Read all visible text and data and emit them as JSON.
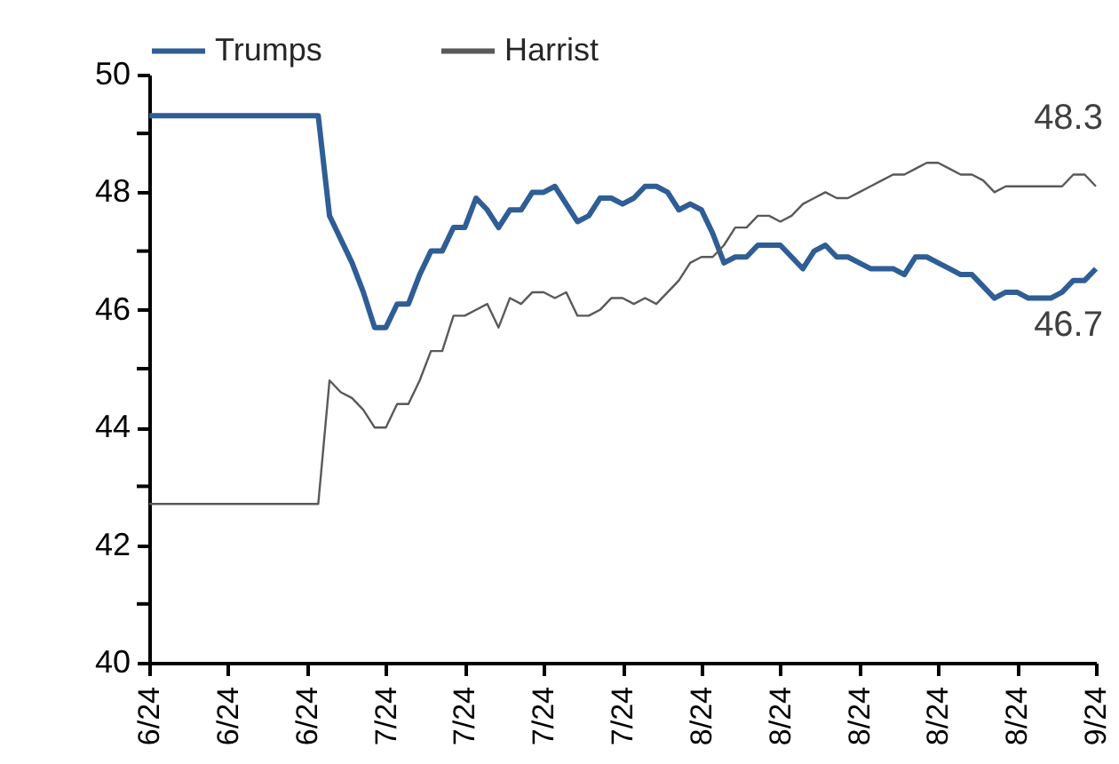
{
  "chart_data": {
    "type": "line",
    "categories": [
      "6/24",
      null,
      null,
      null,
      null,
      null,
      null,
      "6/24",
      null,
      null,
      null,
      null,
      null,
      null,
      "6/24",
      null,
      null,
      null,
      null,
      null,
      null,
      "7/24",
      null,
      null,
      null,
      null,
      null,
      null,
      "7/24",
      null,
      null,
      null,
      null,
      null,
      null,
      "7/24",
      null,
      null,
      null,
      null,
      null,
      null,
      "7/24",
      null,
      null,
      null,
      null,
      null,
      null,
      "8/24",
      null,
      null,
      null,
      null,
      null,
      null,
      "8/24",
      null,
      null,
      null,
      null,
      null,
      null,
      "8/24",
      null,
      null,
      null,
      null,
      null,
      null,
      "8/24",
      null,
      null,
      null,
      null,
      null,
      null,
      "8/24",
      null,
      null,
      null,
      null,
      null,
      null,
      "9/24"
    ],
    "series": [
      {
        "name": "Trumps",
        "color": "#2f5d95",
        "values": [
          49.3,
          49.3,
          49.3,
          49.3,
          49.3,
          49.3,
          49.3,
          49.3,
          49.3,
          49.3,
          49.3,
          49.3,
          49.3,
          49.3,
          49.3,
          49.3,
          47.6,
          47.2,
          46.8,
          46.3,
          45.7,
          45.7,
          46.1,
          46.1,
          46.6,
          47.0,
          47.0,
          47.4,
          47.4,
          47.9,
          47.7,
          47.4,
          47.7,
          47.7,
          48.0,
          48.0,
          48.1,
          47.8,
          47.5,
          47.6,
          47.9,
          47.9,
          47.8,
          47.9,
          48.1,
          48.1,
          48.0,
          47.7,
          47.8,
          47.7,
          47.3,
          46.8,
          46.9,
          46.9,
          47.1,
          47.1,
          47.1,
          46.9,
          46.7,
          47.0,
          47.1,
          46.9,
          46.9,
          46.8,
          46.7,
          46.7,
          46.7,
          46.6,
          46.9,
          46.9,
          46.8,
          46.7,
          46.6,
          46.6,
          46.4,
          46.2,
          46.3,
          46.3,
          46.2,
          46.2,
          46.2,
          46.3,
          46.5,
          46.5,
          46.7
        ]
      },
      {
        "name": "Harrist",
        "color": "#595959",
        "values": [
          42.7,
          42.7,
          42.7,
          42.7,
          42.7,
          42.7,
          42.7,
          42.7,
          42.7,
          42.7,
          42.7,
          42.7,
          42.7,
          42.7,
          42.7,
          42.7,
          44.8,
          44.6,
          44.5,
          44.3,
          44.0,
          44.0,
          44.4,
          44.4,
          44.8,
          45.3,
          45.3,
          45.9,
          45.9,
          46.0,
          46.1,
          45.7,
          46.2,
          46.1,
          46.3,
          46.3,
          46.2,
          46.3,
          45.9,
          45.9,
          46.0,
          46.2,
          46.2,
          46.1,
          46.2,
          46.1,
          46.3,
          46.5,
          46.8,
          46.9,
          46.9,
          47.1,
          47.4,
          47.4,
          47.6,
          47.6,
          47.5,
          47.6,
          47.8,
          47.9,
          48.0,
          47.9,
          47.9,
          48.0,
          48.1,
          48.2,
          48.3,
          48.3,
          48.4,
          48.5,
          48.5,
          48.4,
          48.3,
          48.3,
          48.2,
          48.0,
          48.1,
          48.1,
          48.1,
          48.1,
          48.1,
          48.1,
          48.3,
          48.3,
          48.1
        ]
      }
    ],
    "ylim": [
      40,
      50
    ],
    "yticks": [
      40,
      {
        "value": 41,
        "label": null
      },
      42,
      {
        "value": 43,
        "label": null
      },
      44,
      {
        "value": 45,
        "label": null
      },
      46,
      {
        "value": 47,
        "label": null
      },
      48,
      {
        "value": 49,
        "label": null
      },
      50
    ],
    "annotations": [
      {
        "text": "48.3",
        "x": "9/24",
        "y": 48.3
      },
      {
        "text": "46.7",
        "x": "9/24",
        "y": 46.7
      }
    ],
    "legend": "top",
    "grid": false
  }
}
